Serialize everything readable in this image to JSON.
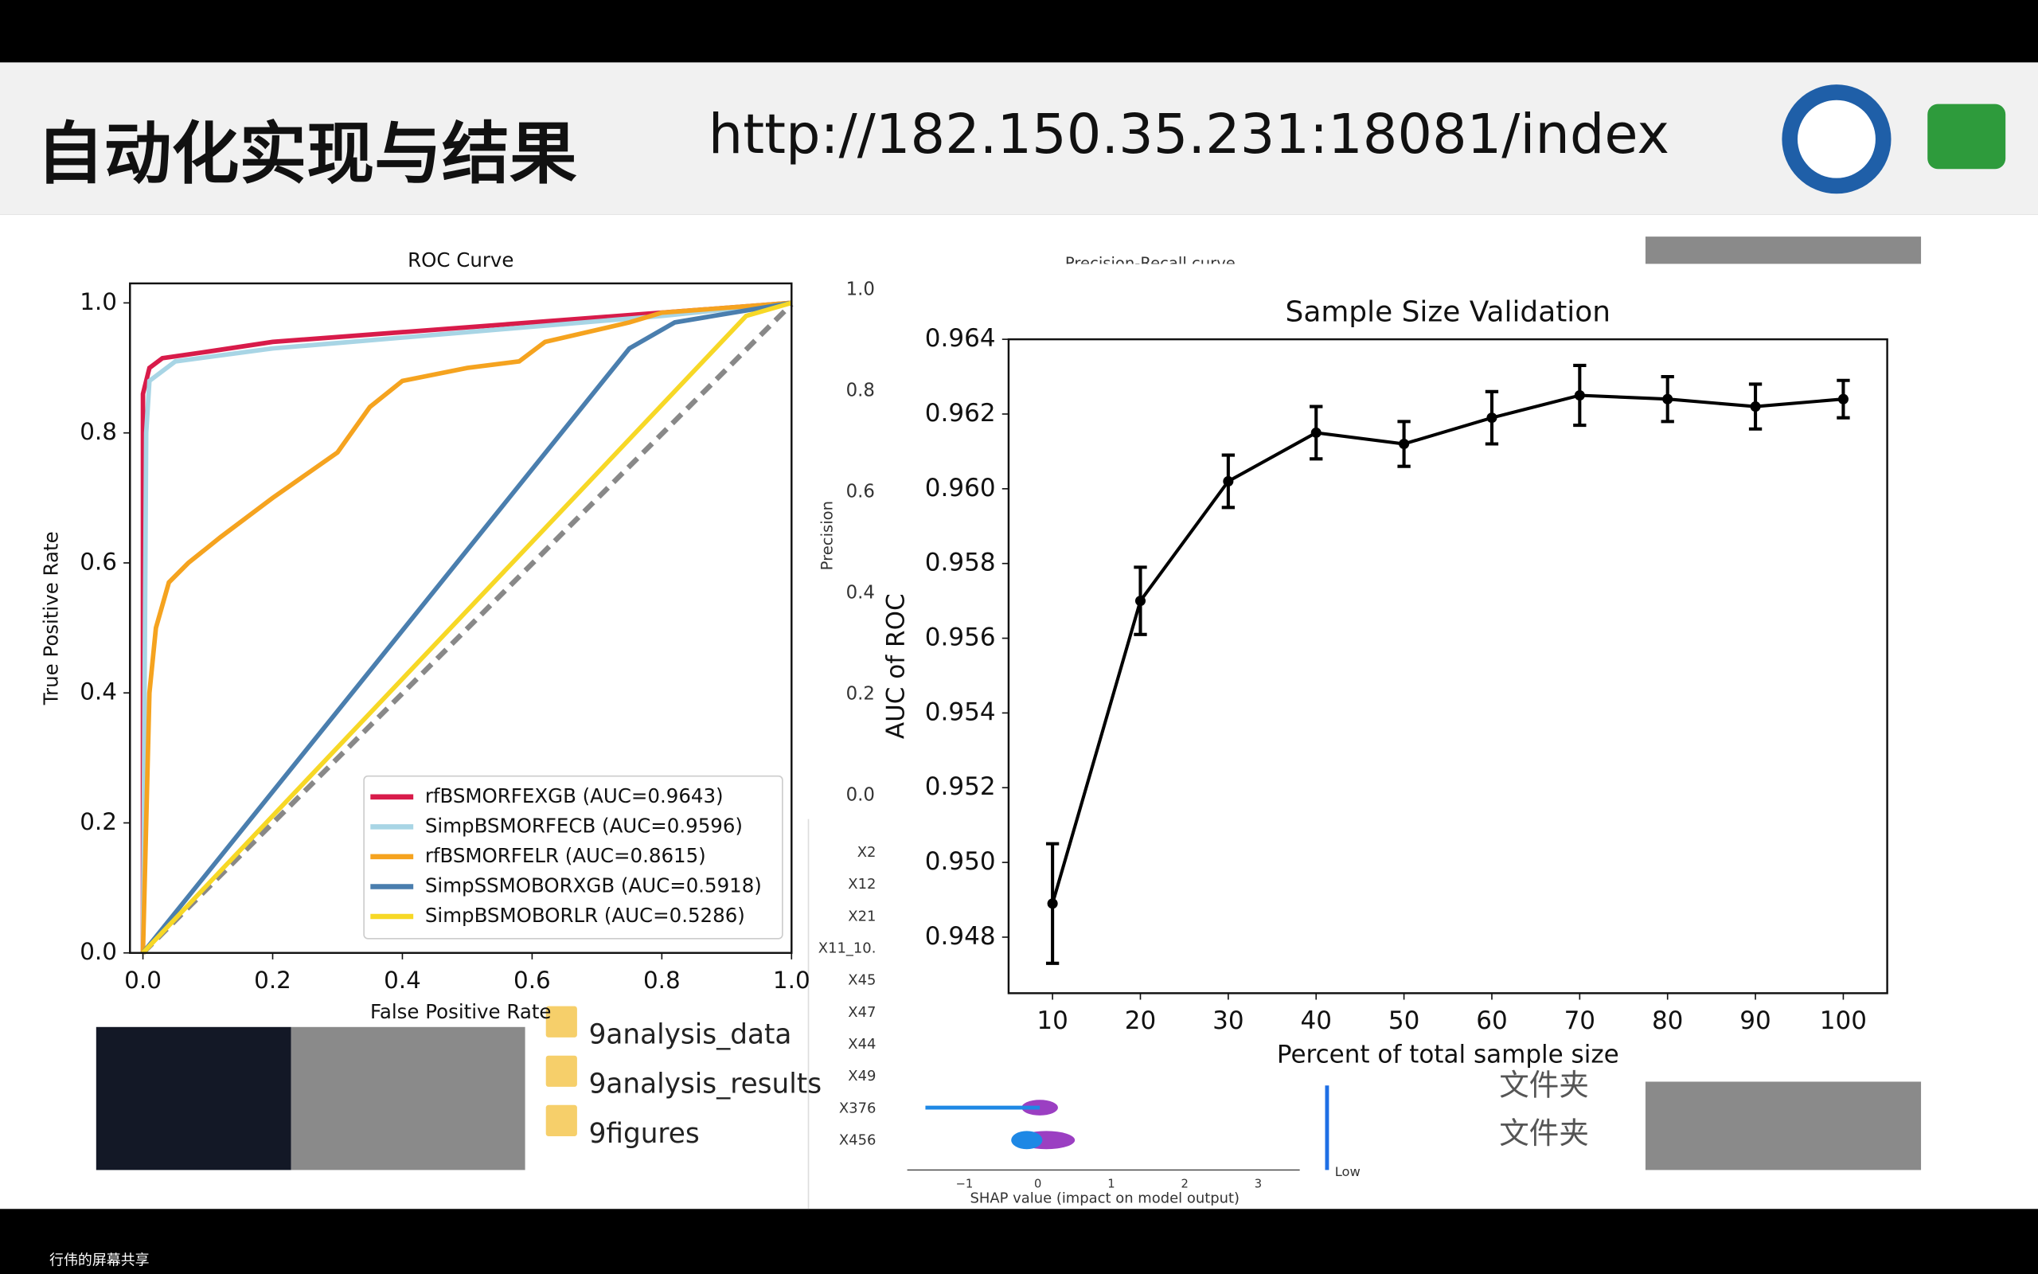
{
  "header": {
    "title": "自动化实现与结果",
    "url": "http://182.150.35.231:18081/index"
  },
  "chart_data": [
    {
      "type": "line",
      "title": "ROC Curve",
      "x_label": "False Positive Rate",
      "y_label": "True Positive Rate",
      "xlim": [
        -0.02,
        1.0
      ],
      "ylim": [
        0,
        1.03
      ],
      "xticks": [
        {
          "value": 0,
          "label": "0.0"
        },
        0.2,
        0.4,
        0.6,
        0.8,
        {
          "value": 1,
          "label": "1.0"
        }
      ],
      "yticks": [
        {
          "value": 0,
          "label": "0.0"
        },
        0.2,
        0.4,
        0.6,
        0.8,
        {
          "value": 1,
          "label": "1.0"
        }
      ],
      "legend": "lower right",
      "series": [
        {
          "name": "rfBSMORFEXGB (AUC=0.9643)",
          "color": "#d81b4a",
          "x": [
            0,
            0,
            0.01,
            0.03,
            0.1,
            0.2,
            0.4,
            0.6,
            0.8,
            1
          ],
          "values": [
            0,
            0.86,
            0.9,
            0.915,
            0.925,
            0.94,
            0.955,
            0.97,
            0.985,
            1
          ]
        },
        {
          "name": "SimpBSMORFECB (AUC=0.9596)",
          "color": "#a8d5e5",
          "x": [
            0,
            0.005,
            0.01,
            0.05,
            0.2,
            0.5,
            0.8,
            1
          ],
          "values": [
            0,
            0.8,
            0.88,
            0.91,
            0.93,
            0.955,
            0.98,
            1
          ]
        },
        {
          "name": "rfBSMORFELR (AUC=0.8615)",
          "color": "#f5a31f",
          "x": [
            0,
            0.01,
            0.02,
            0.04,
            0.07,
            0.12,
            0.2,
            0.3,
            0.35,
            0.4,
            0.5,
            0.58,
            0.62,
            0.75,
            0.8,
            1
          ],
          "values": [
            0,
            0.4,
            0.5,
            0.57,
            0.6,
            0.64,
            0.7,
            0.77,
            0.84,
            0.88,
            0.9,
            0.91,
            0.94,
            0.97,
            0.985,
            1
          ]
        },
        {
          "name": "SimpSSMOBORXGB (AUC=0.5918)",
          "color": "#4a7eae",
          "x": [
            0,
            0.75,
            0.82,
            0.88,
            1
          ],
          "values": [
            0,
            0.93,
            0.97,
            0.98,
            1
          ]
        },
        {
          "name": "SimpBSMOBORLR (AUC=0.5286)",
          "color": "#f7d826",
          "x": [
            0,
            0.93,
            1
          ],
          "values": [
            0,
            0.98,
            1
          ]
        }
      ]
    },
    {
      "type": "errorline",
      "title": "Sample Size Validation",
      "x_label": "Percent of total sample size",
      "y_label": "AUC of ROC",
      "x": [
        10,
        20,
        30,
        40,
        50,
        60,
        70,
        80,
        90,
        100
      ],
      "values": [
        0.9489,
        0.957,
        0.9602,
        0.9615,
        0.9612,
        0.9619,
        0.9625,
        0.9624,
        0.9622,
        0.9624
      ],
      "errors": [
        0.0016,
        0.0009,
        0.0007,
        0.0007,
        0.0006,
        0.0007,
        0.0008,
        0.0006,
        0.0006,
        0.0005
      ],
      "color": "#000000",
      "xlim": [
        5,
        105
      ],
      "ylim": [
        0.9465,
        0.964
      ],
      "xticks": [
        10,
        20,
        30,
        40,
        50,
        60,
        70,
        80,
        90,
        100
      ],
      "yticks": [
        0.948,
        {
          "value": 0.95,
          "label": "0.950"
        },
        0.952,
        0.954,
        0.956,
        0.958,
        {
          "value": 0.96,
          "label": "0.960"
        },
        0.962,
        0.964
      ]
    }
  ],
  "background": {
    "pr_title": "Precision-Recall curve",
    "precision_label": "Precision",
    "precision_ticks": [
      "1.0",
      "0.8",
      "0.6",
      "0.4",
      "0.2",
      "0.0"
    ],
    "shap_features": [
      "X2",
      "X12",
      "X21",
      "X11_10.",
      "X45",
      "X47",
      "X44",
      "X49",
      "X376",
      "X456"
    ],
    "shap_xticks": [
      "−1",
      "0",
      "1",
      "2",
      "3"
    ],
    "shap_xlabel": "SHAP value (impact on model output)",
    "shap_low": "Low",
    "files": [
      "9analysis_data",
      "9analysis_results",
      "9figures"
    ],
    "folder_type": [
      "文件夹",
      "文件夹"
    ]
  },
  "footer": {
    "share": "行伟的屏幕共享"
  }
}
